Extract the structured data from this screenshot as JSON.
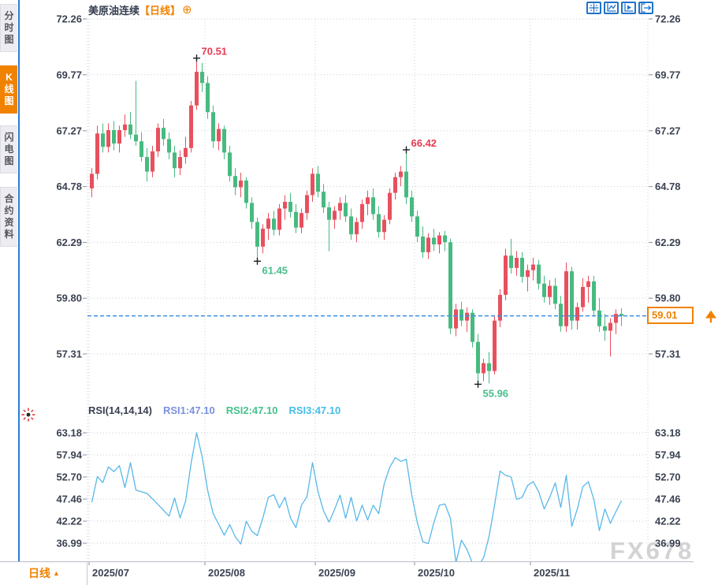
{
  "sidebar": {
    "tabs": [
      {
        "label": "分时图",
        "active": false
      },
      {
        "label": "K线图",
        "active": true
      },
      {
        "label": "闪电图",
        "active": false
      },
      {
        "label": "合约资料",
        "active": false
      }
    ]
  },
  "header": {
    "instrument": "美原油连续",
    "period_tag": "【日线】",
    "add_icon": "⊕"
  },
  "toolbar": {
    "icons": [
      "pan-crosshair",
      "chart-scale",
      "chart-playback",
      "exit-view"
    ]
  },
  "rsi_header": {
    "name": "RSI(14,14,14)",
    "rsi1": "RSI1:47.10",
    "rsi2": "RSI2:47.10",
    "rsi3": "RSI3:47.10"
  },
  "price_box": {
    "value": "59.01"
  },
  "period_label": {
    "text": "日线",
    "arrow": "▲"
  },
  "watermark": "FX678",
  "colors": {
    "up": "#e8505e",
    "down": "#47ba80",
    "annotation_high": "#e83b52",
    "annotation_low": "#49bd8c",
    "rsi_line": "#57b8e8",
    "last_price_line": "#3c8fe2",
    "accent": "#f08200",
    "axis_text": "#3b4252",
    "grid": "#c9ccd6",
    "marker": "#1a1d24"
  },
  "chart_data": {
    "type": "candlestick",
    "instrument": "美原油连续",
    "period": "日线",
    "price_axis_ticks": [
      72.26,
      69.77,
      67.27,
      64.78,
      62.29,
      59.8,
      57.31
    ],
    "last_price": 59.01,
    "x_ticks": [
      {
        "label": "2025/07",
        "index": 0
      },
      {
        "label": "2025/08",
        "index": 21
      },
      {
        "label": "2025/09",
        "index": 41
      },
      {
        "label": "2025/10",
        "index": 59
      },
      {
        "label": "2025/11",
        "index": 80
      }
    ],
    "annotations": [
      {
        "index": 19,
        "label": "70.51",
        "at": "high"
      },
      {
        "index": 30,
        "label": "61.45",
        "at": "low"
      },
      {
        "index": 57,
        "label": "66.42",
        "at": "high"
      },
      {
        "index": 70,
        "label": "55.96",
        "at": "low"
      }
    ],
    "candles": [
      [
        64.7,
        65.6,
        64.3,
        65.35
      ],
      [
        65.35,
        67.5,
        65.1,
        67.15
      ],
      [
        67.15,
        67.6,
        66.3,
        66.55
      ],
      [
        66.55,
        67.6,
        66.3,
        67.3
      ],
      [
        67.3,
        67.7,
        66.4,
        66.7
      ],
      [
        66.7,
        67.5,
        66.3,
        67.3
      ],
      [
        67.3,
        68.0,
        67.0,
        67.55
      ],
      [
        67.55,
        68.1,
        66.9,
        67.1
      ],
      [
        67.1,
        69.5,
        66.6,
        66.8
      ],
      [
        66.8,
        67.2,
        65.9,
        66.1
      ],
      [
        66.1,
        66.5,
        65.0,
        65.45
      ],
      [
        65.45,
        66.6,
        65.2,
        66.35
      ],
      [
        66.35,
        67.6,
        66.1,
        67.4
      ],
      [
        67.4,
        67.8,
        66.6,
        66.9
      ],
      [
        66.9,
        67.2,
        66.0,
        66.3
      ],
      [
        66.3,
        66.6,
        65.2,
        65.6
      ],
      [
        65.6,
        66.4,
        65.3,
        66.1
      ],
      [
        66.1,
        67.0,
        65.8,
        66.5
      ],
      [
        66.5,
        68.6,
        66.3,
        68.4
      ],
      [
        68.4,
        70.51,
        68.2,
        69.9
      ],
      [
        69.9,
        70.3,
        69.0,
        69.4
      ],
      [
        69.4,
        69.7,
        67.8,
        68.1
      ],
      [
        68.1,
        68.4,
        66.5,
        66.8
      ],
      [
        66.8,
        67.6,
        66.4,
        67.35
      ],
      [
        67.35,
        67.5,
        66.0,
        66.3
      ],
      [
        66.3,
        66.6,
        65.0,
        65.25
      ],
      [
        65.25,
        65.6,
        64.4,
        64.75
      ],
      [
        64.75,
        65.4,
        64.3,
        65.05
      ],
      [
        65.05,
        65.2,
        63.8,
        64.05
      ],
      [
        64.05,
        64.3,
        62.9,
        63.2
      ],
      [
        63.2,
        63.4,
        61.45,
        62.1
      ],
      [
        62.1,
        63.1,
        61.8,
        62.9
      ],
      [
        62.9,
        63.6,
        62.4,
        63.35
      ],
      [
        63.35,
        63.7,
        62.6,
        62.85
      ],
      [
        62.85,
        64.0,
        62.6,
        63.8
      ],
      [
        63.8,
        64.4,
        63.3,
        64.1
      ],
      [
        64.1,
        64.5,
        63.4,
        63.65
      ],
      [
        63.65,
        64.0,
        62.7,
        62.95
      ],
      [
        62.95,
        63.8,
        62.7,
        63.6
      ],
      [
        63.6,
        64.6,
        63.3,
        64.4
      ],
      [
        64.4,
        65.6,
        64.1,
        65.35
      ],
      [
        65.35,
        65.7,
        64.3,
        64.55
      ],
      [
        64.55,
        64.9,
        63.6,
        63.85
      ],
      [
        63.85,
        64.1,
        61.9,
        63.3
      ],
      [
        63.3,
        63.9,
        62.9,
        63.7
      ],
      [
        63.7,
        64.3,
        63.3,
        64.05
      ],
      [
        64.05,
        64.4,
        63.2,
        63.45
      ],
      [
        63.45,
        63.8,
        62.4,
        62.65
      ],
      [
        62.65,
        63.4,
        62.3,
        63.2
      ],
      [
        63.2,
        64.2,
        62.9,
        64.0
      ],
      [
        64.0,
        64.6,
        63.5,
        64.3
      ],
      [
        64.3,
        64.7,
        63.3,
        63.55
      ],
      [
        63.55,
        63.9,
        62.5,
        62.75
      ],
      [
        62.75,
        63.5,
        62.4,
        63.3
      ],
      [
        63.3,
        64.7,
        63.1,
        64.5
      ],
      [
        64.5,
        65.4,
        64.2,
        65.2
      ],
      [
        65.2,
        65.7,
        64.8,
        65.45
      ],
      [
        65.45,
        66.42,
        64.0,
        64.3
      ],
      [
        64.3,
        64.6,
        63.2,
        63.45
      ],
      [
        63.45,
        63.7,
        62.3,
        62.55
      ],
      [
        62.55,
        63.0,
        61.6,
        61.85
      ],
      [
        61.85,
        62.7,
        61.55,
        62.5
      ],
      [
        62.5,
        62.9,
        61.9,
        62.2
      ],
      [
        62.2,
        62.75,
        61.8,
        62.6
      ],
      [
        62.6,
        62.8,
        61.9,
        62.3
      ],
      [
        62.3,
        62.45,
        58.2,
        58.45
      ],
      [
        58.45,
        59.55,
        58.1,
        59.3
      ],
      [
        59.3,
        59.65,
        58.55,
        58.8
      ],
      [
        58.8,
        59.4,
        58.3,
        59.15
      ],
      [
        59.15,
        59.3,
        57.6,
        57.85
      ],
      [
        57.85,
        58.2,
        55.96,
        56.45
      ],
      [
        56.45,
        57.1,
        56.1,
        56.9
      ],
      [
        56.9,
        57.4,
        56.0,
        56.55
      ],
      [
        56.55,
        59.0,
        56.4,
        58.8
      ],
      [
        58.8,
        60.2,
        58.5,
        59.95
      ],
      [
        59.95,
        62.0,
        59.7,
        61.7
      ],
      [
        61.7,
        62.45,
        60.9,
        61.15
      ],
      [
        61.15,
        61.9,
        60.8,
        61.6
      ],
      [
        61.6,
        61.85,
        60.5,
        60.75
      ],
      [
        60.75,
        61.3,
        60.1,
        61.05
      ],
      [
        61.05,
        61.6,
        60.6,
        61.3
      ],
      [
        61.3,
        61.5,
        60.2,
        60.45
      ],
      [
        60.45,
        60.8,
        59.6,
        59.85
      ],
      [
        59.85,
        60.6,
        59.5,
        60.35
      ],
      [
        60.35,
        60.7,
        59.3,
        59.55
      ],
      [
        59.55,
        59.9,
        58.3,
        58.55
      ],
      [
        58.55,
        61.4,
        58.3,
        61.0
      ],
      [
        61.0,
        61.2,
        58.4,
        58.8
      ],
      [
        58.8,
        59.6,
        58.4,
        59.4
      ],
      [
        59.4,
        60.7,
        59.2,
        60.3
      ],
      [
        60.3,
        60.8,
        59.6,
        60.55
      ],
      [
        60.55,
        60.8,
        59.0,
        59.25
      ],
      [
        59.25,
        59.8,
        58.3,
        58.55
      ],
      [
        58.55,
        59.1,
        57.9,
        58.35
      ],
      [
        58.35,
        58.9,
        57.2,
        58.7
      ],
      [
        58.7,
        59.3,
        58.2,
        59.1
      ],
      [
        59.1,
        59.35,
        58.55,
        59.01
      ]
    ],
    "rsi": {
      "params": "RSI(14,14,14)",
      "current": 47.1,
      "axis_ticks": [
        63.18,
        57.94,
        52.7,
        47.46,
        42.22,
        36.99
      ],
      "values": [
        46.7,
        52.8,
        51.4,
        55.1,
        54.0,
        55.4,
        50.2,
        56.1,
        49.6,
        49.2,
        48.8,
        47.5,
        46.2,
        44.8,
        43.4,
        47.7,
        43.0,
        47.0,
        56.0,
        63.18,
        57.5,
        49.5,
        44.0,
        41.5,
        38.9,
        41.4,
        38.5,
        36.8,
        42.2,
        39.8,
        38.8,
        43.0,
        47.9,
        48.5,
        45.4,
        47.9,
        43.0,
        40.7,
        46.0,
        48.0,
        56.1,
        49.2,
        44.7,
        42.0,
        45.0,
        48.4,
        42.9,
        47.9,
        42.3,
        46.0,
        42.5,
        46.0,
        44.0,
        51.1,
        55.0,
        57.3,
        56.4,
        56.9,
        48.4,
        41.9,
        37.3,
        36.9,
        41.9,
        46.0,
        46.3,
        42.9,
        32.4,
        37.7,
        35.5,
        32.2,
        31.6,
        33.5,
        38.6,
        46.0,
        54.1,
        53.1,
        52.7,
        47.4,
        47.9,
        50.7,
        51.6,
        49.2,
        45.1,
        47.9,
        51.3,
        45.5,
        53.1,
        41.0,
        45.1,
        50.4,
        51.6,
        47.4,
        40.0,
        45.1,
        41.7,
        44.5,
        47.1
      ]
    }
  }
}
